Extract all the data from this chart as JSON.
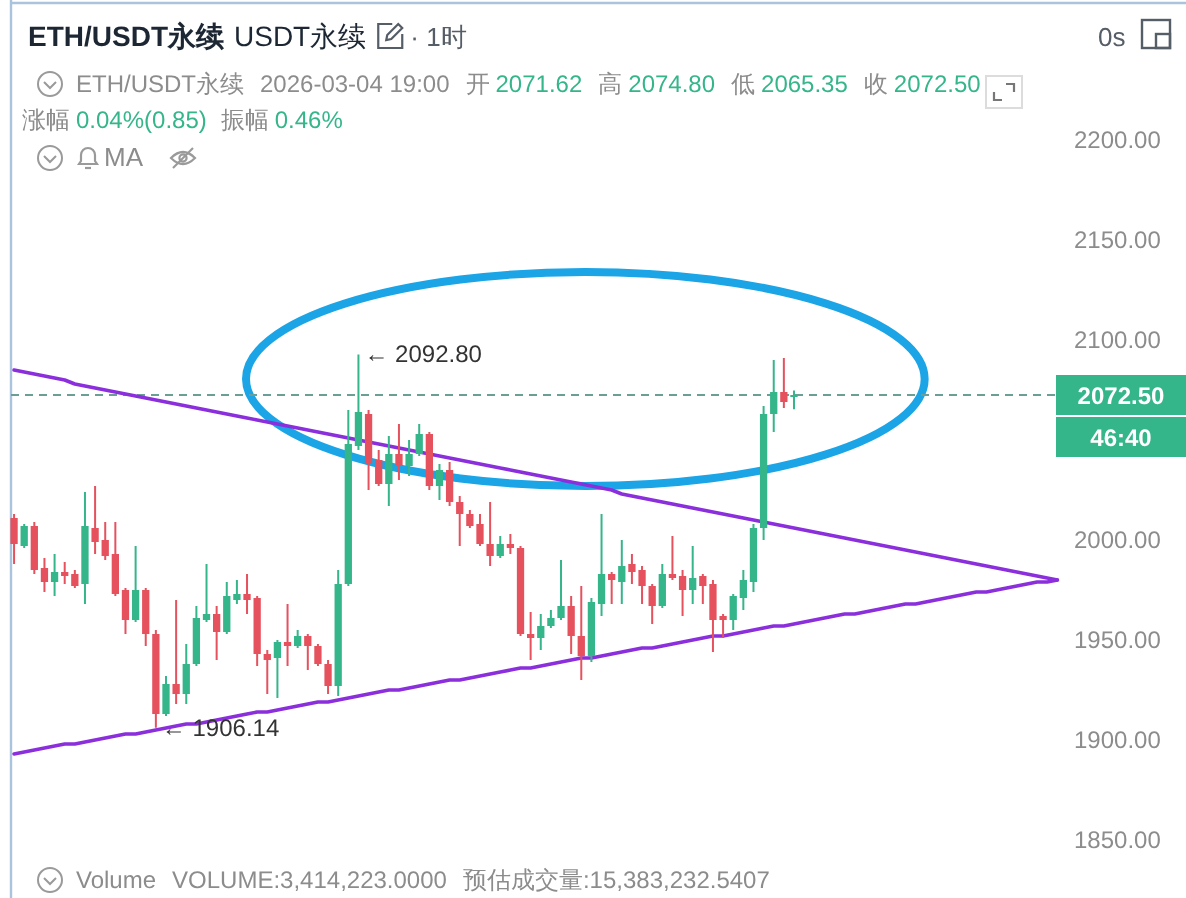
{
  "chart_data": {
    "type": "candlestick",
    "title": "ETH/USDT永续",
    "subtitle": "USDT永续",
    "categories": [
      null,
      null,
      null,
      null,
      null,
      null,
      null,
      null,
      null,
      null,
      null,
      null,
      null,
      null,
      null,
      null,
      null,
      null,
      null,
      null,
      null,
      null,
      null,
      null,
      null,
      null,
      null,
      null,
      null,
      null,
      null,
      null,
      null,
      null,
      null,
      null,
      null,
      null,
      null,
      null,
      null,
      null,
      null,
      null,
      null,
      null,
      null,
      null,
      null,
      null,
      null,
      null,
      null,
      null,
      null,
      null,
      null,
      null,
      null,
      null,
      null,
      null,
      null,
      null,
      null,
      null,
      null,
      null,
      null,
      null,
      null,
      null,
      null,
      null,
      null,
      null,
      null,
      null,
      null,
      null,
      null,
      null,
      null,
      null,
      null,
      null,
      null,
      null,
      null,
      null,
      null,
      null,
      null,
      null,
      null,
      null,
      null,
      null,
      null,
      null,
      null,
      null,
      null,
      null
    ],
    "ohlc": [
      [
        2011,
        2013,
        1988,
        1998
      ],
      [
        1997,
        2008,
        1996,
        2007
      ],
      [
        2007,
        2009,
        1983,
        1985
      ],
      [
        1986,
        1991,
        1974,
        1979
      ],
      [
        1979,
        1993,
        1972,
        1984
      ],
      [
        1984,
        1989,
        1978,
        1982
      ],
      [
        1983,
        1985,
        1976,
        1977
      ],
      [
        1978,
        2024,
        1968,
        2007
      ],
      [
        2006,
        2027,
        1993,
        1999
      ],
      [
        2000,
        2009,
        1990,
        1992
      ],
      [
        1993,
        2009,
        1972,
        1973
      ],
      [
        1975,
        1976,
        1953,
        1960
      ],
      [
        1960,
        1997,
        1959,
        1975
      ],
      [
        1975,
        1976,
        1947,
        1953
      ],
      [
        1953,
        1955,
        1906.14,
        1913
      ],
      [
        1913,
        1932,
        1912,
        1928
      ],
      [
        1928,
        1970,
        1918,
        1923
      ],
      [
        1923,
        1948,
        1918,
        1938
      ],
      [
        1938,
        1967,
        1937,
        1961
      ],
      [
        1960,
        1988,
        1959,
        1963
      ],
      [
        1963,
        1967,
        1940,
        1954
      ],
      [
        1954,
        1979,
        1953,
        1972
      ],
      [
        1970,
        1980,
        1968,
        1973
      ],
      [
        1973,
        1983,
        1963,
        1970
      ],
      [
        1971,
        1972,
        1937,
        1943
      ],
      [
        1943,
        1945,
        1923,
        1940
      ],
      [
        1941,
        1950,
        1921,
        1949
      ],
      [
        1949,
        1968,
        1937,
        1947
      ],
      [
        1947,
        1955,
        1946,
        1952
      ],
      [
        1952,
        1953,
        1935,
        1947
      ],
      [
        1947,
        1948,
        1937,
        1938
      ],
      [
        1938,
        1940,
        1923,
        1927
      ],
      [
        1927,
        1985,
        1922,
        1978
      ],
      [
        1978,
        2065,
        1977,
        2048
      ],
      [
        2047,
        2092.8,
        2045,
        2064
      ],
      [
        2063,
        2065,
        2025,
        2038
      ],
      [
        2040,
        2045,
        2027,
        2028
      ],
      [
        2028,
        2052,
        2017,
        2043
      ],
      [
        2043,
        2058,
        2030,
        2037
      ],
      [
        2037,
        2050,
        2032,
        2043
      ],
      [
        2043,
        2058,
        2042,
        2053
      ],
      [
        2053,
        2054,
        2025,
        2027
      ],
      [
        2027,
        2038,
        2020,
        2035
      ],
      [
        2035,
        2039,
        2017,
        2019
      ],
      [
        2019,
        2022,
        1997,
        2013
      ],
      [
        2013,
        2015,
        2006,
        2007
      ],
      [
        2008,
        2013,
        1997,
        1998
      ],
      [
        1998,
        2019,
        1987,
        1992
      ],
      [
        1992,
        2002,
        1991,
        1998
      ],
      [
        1998,
        2003,
        1993,
        1996
      ],
      [
        1996,
        1997,
        1952,
        1953
      ],
      [
        1953,
        1964,
        1940,
        1951
      ],
      [
        1951,
        1963,
        1945,
        1957
      ],
      [
        1957,
        1965,
        1956,
        1961
      ],
      [
        1961,
        1990,
        1960,
        1967
      ],
      [
        1967,
        1972,
        1943,
        1952
      ],
      [
        1952,
        1977,
        1930,
        1942
      ],
      [
        1942,
        1971,
        1939,
        1969
      ],
      [
        1968,
        2013,
        1962,
        1983
      ],
      [
        1983,
        1984,
        1968,
        1980
      ],
      [
        1979,
        2000,
        1968,
        1987
      ],
      [
        1988,
        1993,
        1978,
        1984
      ],
      [
        1985,
        1987,
        1968,
        1977
      ],
      [
        1977,
        1978,
        1958,
        1967
      ],
      [
        1967,
        1988,
        1966,
        1983
      ],
      [
        1983,
        2002,
        1980,
        1981
      ],
      [
        1982,
        1985,
        1962,
        1975
      ],
      [
        1975,
        1997,
        1968,
        1981
      ],
      [
        1982,
        1983,
        1968,
        1977
      ],
      [
        1978,
        1980,
        1944,
        1960
      ],
      [
        1962,
        1963,
        1951,
        1960
      ],
      [
        1960,
        1973,
        1955,
        1972
      ],
      [
        1971,
        1985,
        1965,
        1980
      ],
      [
        1979,
        2008,
        1974,
        2006
      ],
      [
        2006,
        2067,
        2000,
        2063
      ],
      [
        2063,
        2090,
        2054,
        2074
      ],
      [
        2074,
        2091,
        2066,
        2069
      ],
      [
        2071.62,
        2074.8,
        2065.35,
        2072.5
      ],
      null,
      null,
      null,
      null,
      null,
      null,
      null,
      null,
      null,
      null,
      null,
      null,
      null,
      null,
      null,
      null,
      null,
      null,
      null,
      null,
      null,
      null,
      null,
      null,
      null,
      null
    ],
    "colors": [
      "#e5525e",
      "#35b58a",
      "#e5525e",
      "#e5525e",
      "#35b58a",
      "#e5525e",
      "#e5525e",
      "#35b58a",
      "#e5525e",
      "#e5525e",
      "#e5525e",
      "#e5525e",
      "#35b58a",
      "#e5525e",
      "#e5525e",
      "#35b58a",
      "#e5525e",
      "#35b58a",
      "#35b58a",
      "#35b58a",
      "#e5525e",
      "#35b58a",
      "#35b58a",
      "#e5525e",
      "#e5525e",
      "#e5525e",
      "#35b58a",
      "#e5525e",
      "#35b58a",
      "#e5525e",
      "#e5525e",
      "#e5525e",
      "#35b58a",
      "#35b58a",
      "#35b58a",
      "#e5525e",
      "#e5525e",
      "#35b58a",
      "#e5525e",
      "#35b58a",
      "#35b58a",
      "#e5525e",
      "#35b58a",
      "#e5525e",
      "#e5525e",
      "#e5525e",
      "#e5525e",
      "#e5525e",
      "#35b58a",
      "#e5525e",
      "#e5525e",
      "#e5525e",
      "#35b58a",
      "#35b58a",
      "#35b58a",
      "#e5525e",
      "#e5525e",
      "#35b58a",
      "#35b58a",
      "#e5525e",
      "#35b58a",
      "#e5525e",
      "#e5525e",
      "#e5525e",
      "#35b58a",
      "#e5525e",
      "#e5525e",
      "#35b58a",
      "#e5525e",
      "#e5525e",
      "#e5525e",
      "#35b58a",
      "#35b58a",
      "#35b58a",
      "#35b58a",
      "#35b58a",
      "#e5525e",
      "#35b58a",
      null,
      null,
      null,
      null,
      null,
      null,
      null,
      null,
      null,
      null,
      null,
      null,
      null,
      null,
      null,
      null,
      null,
      null,
      null,
      null,
      null,
      null,
      null,
      null,
      null,
      null
    ],
    "series": [
      {
        "type": "line",
        "color": "#8b2fdc",
        "values": [
          2085,
          2084,
          2083,
          2082,
          2081,
          2080,
          2078,
          2077,
          2076,
          2075,
          2074,
          2073,
          2072,
          2071,
          2070,
          2069,
          2068,
          2067,
          2066,
          2065,
          2064,
          2063,
          2062,
          2061,
          2060,
          2059,
          2058,
          2057,
          2056,
          2055,
          2054,
          2053,
          2052,
          2051,
          2050,
          2049,
          2048,
          2047,
          2046,
          2045,
          2044,
          2043,
          2042,
          2041,
          2040,
          2039,
          2038,
          2037,
          2036,
          2035,
          2034,
          2033,
          2032,
          2031,
          2030,
          2029,
          2028,
          2027,
          2026,
          2025,
          2023,
          2022,
          2021,
          2020,
          2019,
          2018,
          2017,
          2016,
          2015,
          2014,
          2013,
          2012,
          2011,
          2010,
          2009,
          2008,
          2007,
          2006,
          2005,
          2004,
          2003,
          2002,
          2001,
          2000,
          1999,
          1998,
          1997,
          1996,
          1995,
          1994,
          1993,
          1992,
          1991,
          1990,
          1989,
          1988,
          1987,
          1986,
          1985,
          1984,
          1983,
          1982,
          1981,
          1980
        ]
      },
      {
        "type": "line",
        "color": "#8b2fdc",
        "values": [
          1893,
          1894,
          1895,
          1896,
          1897,
          1898,
          1898,
          1899,
          1900,
          1901,
          1902,
          1903,
          1903,
          1904,
          1905,
          1906,
          1907,
          1908,
          1908,
          1909,
          1910,
          1911,
          1912,
          1913,
          1914,
          1914,
          1915,
          1916,
          1917,
          1918,
          1919,
          1919,
          1920,
          1921,
          1922,
          1923,
          1924,
          1925,
          1925,
          1926,
          1927,
          1928,
          1929,
          1930,
          1930,
          1931,
          1932,
          1933,
          1934,
          1935,
          1936,
          1936,
          1937,
          1938,
          1939,
          1940,
          1941,
          1941,
          1942,
          1943,
          1944,
          1945,
          1946,
          1946,
          1947,
          1948,
          1949,
          1950,
          1951,
          1952,
          1952,
          1953,
          1954,
          1955,
          1956,
          1957,
          1957,
          1958,
          1959,
          1960,
          1961,
          1962,
          1963,
          1963,
          1964,
          1965,
          1966,
          1967,
          1968,
          1968,
          1969,
          1970,
          1971,
          1972,
          1973,
          1974,
          1974,
          1975,
          1976,
          1977,
          1978,
          1979,
          1979,
          1980
        ]
      }
    ],
    "ylim": [
      1850,
      2200
    ],
    "yticks": [
      {
        "value": 1850,
        "label": "1850.00"
      },
      {
        "value": 1900,
        "label": "1900.00"
      },
      {
        "value": 1950,
        "label": "1950.00"
      },
      {
        "value": 2000,
        "label": "2000.00"
      },
      {
        "value": 2100,
        "label": "2100.00"
      },
      {
        "value": 2150,
        "label": "2150.00"
      },
      {
        "value": 2200,
        "label": "2200.00"
      }
    ],
    "tick_labels": "y",
    "ref_lines": [
      {
        "axis": "y",
        "value": 2072.5,
        "label": "2072.50",
        "color": "#6b9e94",
        "line_style": "dashed"
      }
    ],
    "annotations": [
      "· 1时",
      "0s",
      "ETH/USDT永续",
      "2026-03-04 19:00",
      "开",
      "2071.62",
      "高",
      "2074.80",
      "低",
      "2065.35",
      "收",
      "2072.50",
      "涨幅",
      "0.04%(0.85)",
      "振幅",
      "0.46%",
      "MA",
      "Volume",
      "VOLUME:3,414,223.0000",
      "预估成交量:15,383,232.5407",
      "46:40",
      "← 2092.80",
      "← 1906.14"
    ]
  }
}
